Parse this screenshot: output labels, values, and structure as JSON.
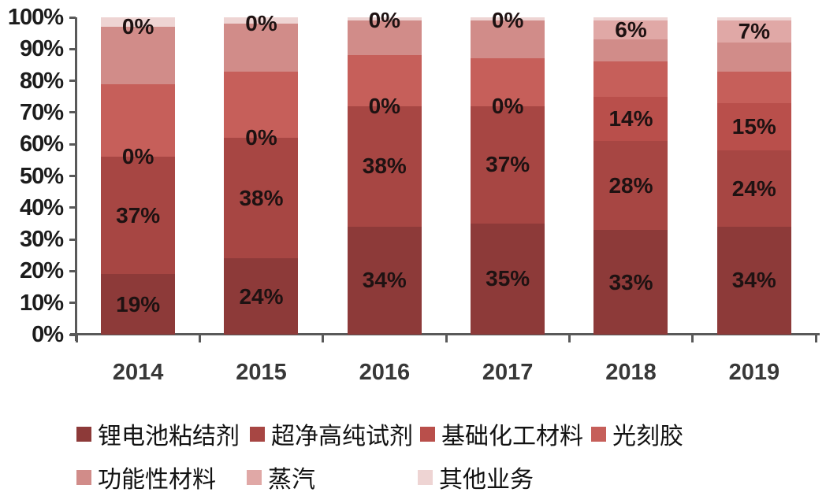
{
  "chart_data": {
    "type": "bar",
    "subtype": "stacked-100-percent",
    "title": "",
    "xlabel": "",
    "ylabel": "",
    "categories": [
      "2014",
      "2015",
      "2016",
      "2017",
      "2018",
      "2019"
    ],
    "series": [
      {
        "name": "锂电池粘结剂",
        "color": "#8d3a39",
        "values": [
          19,
          24,
          34,
          35,
          33,
          34
        ]
      },
      {
        "name": "超净高纯试剂",
        "color": "#a74643",
        "values": [
          37,
          38,
          38,
          37,
          28,
          24
        ]
      },
      {
        "name": "基础化工材料",
        "color": "#b94f4b",
        "values": [
          0,
          0,
          0,
          0,
          14,
          15
        ]
      },
      {
        "name": "光刻胶",
        "color": "#c65f5a",
        "values": [
          23,
          21,
          16,
          15,
          11,
          10
        ]
      },
      {
        "name": "功能性材料",
        "color": "#d18c89",
        "values": [
          18,
          15,
          11,
          12,
          7,
          9
        ]
      },
      {
        "name": "蒸汽",
        "color": "#e0a8a6",
        "values": [
          0,
          0,
          0,
          0,
          6,
          7
        ]
      },
      {
        "name": "其他业务",
        "color": "#eed4d3",
        "values": [
          3,
          2,
          1,
          1,
          1,
          1
        ]
      }
    ],
    "labeled_series_indices": [
      0,
      1,
      2,
      5
    ],
    "data_labels": {
      "2014": [
        "19%",
        "37%",
        "0%",
        "0%"
      ],
      "2015": [
        "24%",
        "38%",
        "0%",
        "0%"
      ],
      "2016": [
        "34%",
        "38%",
        "0%",
        "0%"
      ],
      "2017": [
        "35%",
        "37%",
        "0%",
        "0%"
      ],
      "2018": [
        "33%",
        "28%",
        "14%",
        "6%"
      ],
      "2019": [
        "34%",
        "24%",
        "15%",
        "7%"
      ]
    },
    "y_ticks": [
      "0%",
      "10%",
      "20%",
      "30%",
      "40%",
      "50%",
      "60%",
      "70%",
      "80%",
      "90%",
      "100%"
    ],
    "ylim": [
      0,
      100
    ],
    "grid": false,
    "legend_position": "bottom",
    "legend_rows": [
      [
        "锂电池粘结剂",
        "超净高纯试剂",
        "基础化工材料",
        "光刻胶"
      ],
      [
        "功能性材料",
        "蒸汽",
        "其他业务"
      ]
    ],
    "axis_color": "#595959",
    "tick_label_color": "#1c1c1c",
    "data_label_color": "#1e1212"
  }
}
